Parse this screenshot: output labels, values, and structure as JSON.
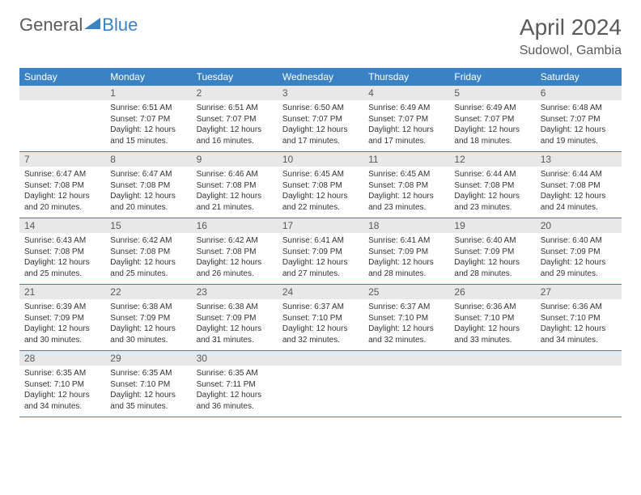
{
  "logo": {
    "part1": "General",
    "part2": "Blue"
  },
  "title": "April 2024",
  "location": "Sudowol, Gambia",
  "headerBg": "#3b82c4",
  "headerFg": "#ffffff",
  "dayNumBg": "#e8e8e8",
  "weekdays": [
    "Sunday",
    "Monday",
    "Tuesday",
    "Wednesday",
    "Thursday",
    "Friday",
    "Saturday"
  ],
  "weeks": [
    [
      {
        "n": "",
        "c": ""
      },
      {
        "n": "1",
        "c": "Sunrise: 6:51 AM\nSunset: 7:07 PM\nDaylight: 12 hours and 15 minutes."
      },
      {
        "n": "2",
        "c": "Sunrise: 6:51 AM\nSunset: 7:07 PM\nDaylight: 12 hours and 16 minutes."
      },
      {
        "n": "3",
        "c": "Sunrise: 6:50 AM\nSunset: 7:07 PM\nDaylight: 12 hours and 17 minutes."
      },
      {
        "n": "4",
        "c": "Sunrise: 6:49 AM\nSunset: 7:07 PM\nDaylight: 12 hours and 17 minutes."
      },
      {
        "n": "5",
        "c": "Sunrise: 6:49 AM\nSunset: 7:07 PM\nDaylight: 12 hours and 18 minutes."
      },
      {
        "n": "6",
        "c": "Sunrise: 6:48 AM\nSunset: 7:07 PM\nDaylight: 12 hours and 19 minutes."
      }
    ],
    [
      {
        "n": "7",
        "c": "Sunrise: 6:47 AM\nSunset: 7:08 PM\nDaylight: 12 hours and 20 minutes."
      },
      {
        "n": "8",
        "c": "Sunrise: 6:47 AM\nSunset: 7:08 PM\nDaylight: 12 hours and 20 minutes."
      },
      {
        "n": "9",
        "c": "Sunrise: 6:46 AM\nSunset: 7:08 PM\nDaylight: 12 hours and 21 minutes."
      },
      {
        "n": "10",
        "c": "Sunrise: 6:45 AM\nSunset: 7:08 PM\nDaylight: 12 hours and 22 minutes."
      },
      {
        "n": "11",
        "c": "Sunrise: 6:45 AM\nSunset: 7:08 PM\nDaylight: 12 hours and 23 minutes."
      },
      {
        "n": "12",
        "c": "Sunrise: 6:44 AM\nSunset: 7:08 PM\nDaylight: 12 hours and 23 minutes."
      },
      {
        "n": "13",
        "c": "Sunrise: 6:44 AM\nSunset: 7:08 PM\nDaylight: 12 hours and 24 minutes."
      }
    ],
    [
      {
        "n": "14",
        "c": "Sunrise: 6:43 AM\nSunset: 7:08 PM\nDaylight: 12 hours and 25 minutes."
      },
      {
        "n": "15",
        "c": "Sunrise: 6:42 AM\nSunset: 7:08 PM\nDaylight: 12 hours and 25 minutes."
      },
      {
        "n": "16",
        "c": "Sunrise: 6:42 AM\nSunset: 7:08 PM\nDaylight: 12 hours and 26 minutes."
      },
      {
        "n": "17",
        "c": "Sunrise: 6:41 AM\nSunset: 7:09 PM\nDaylight: 12 hours and 27 minutes."
      },
      {
        "n": "18",
        "c": "Sunrise: 6:41 AM\nSunset: 7:09 PM\nDaylight: 12 hours and 28 minutes."
      },
      {
        "n": "19",
        "c": "Sunrise: 6:40 AM\nSunset: 7:09 PM\nDaylight: 12 hours and 28 minutes."
      },
      {
        "n": "20",
        "c": "Sunrise: 6:40 AM\nSunset: 7:09 PM\nDaylight: 12 hours and 29 minutes."
      }
    ],
    [
      {
        "n": "21",
        "c": "Sunrise: 6:39 AM\nSunset: 7:09 PM\nDaylight: 12 hours and 30 minutes."
      },
      {
        "n": "22",
        "c": "Sunrise: 6:38 AM\nSunset: 7:09 PM\nDaylight: 12 hours and 30 minutes."
      },
      {
        "n": "23",
        "c": "Sunrise: 6:38 AM\nSunset: 7:09 PM\nDaylight: 12 hours and 31 minutes."
      },
      {
        "n": "24",
        "c": "Sunrise: 6:37 AM\nSunset: 7:10 PM\nDaylight: 12 hours and 32 minutes."
      },
      {
        "n": "25",
        "c": "Sunrise: 6:37 AM\nSunset: 7:10 PM\nDaylight: 12 hours and 32 minutes."
      },
      {
        "n": "26",
        "c": "Sunrise: 6:36 AM\nSunset: 7:10 PM\nDaylight: 12 hours and 33 minutes."
      },
      {
        "n": "27",
        "c": "Sunrise: 6:36 AM\nSunset: 7:10 PM\nDaylight: 12 hours and 34 minutes."
      }
    ],
    [
      {
        "n": "28",
        "c": "Sunrise: 6:35 AM\nSunset: 7:10 PM\nDaylight: 12 hours and 34 minutes."
      },
      {
        "n": "29",
        "c": "Sunrise: 6:35 AM\nSunset: 7:10 PM\nDaylight: 12 hours and 35 minutes."
      },
      {
        "n": "30",
        "c": "Sunrise: 6:35 AM\nSunset: 7:11 PM\nDaylight: 12 hours and 36 minutes."
      },
      {
        "n": "",
        "c": ""
      },
      {
        "n": "",
        "c": ""
      },
      {
        "n": "",
        "c": ""
      },
      {
        "n": "",
        "c": ""
      }
    ]
  ]
}
